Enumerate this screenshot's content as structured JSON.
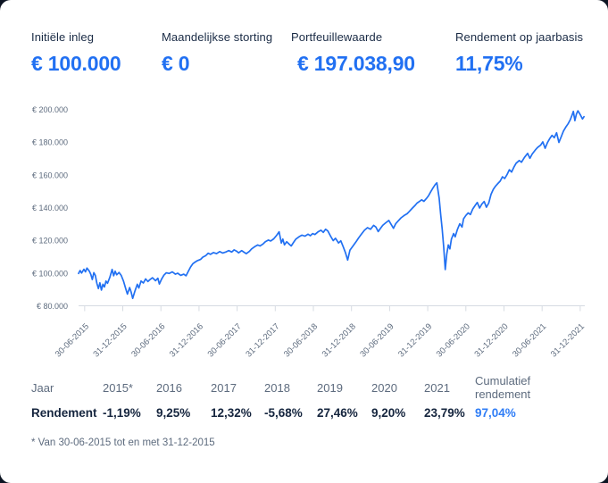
{
  "summary": {
    "items": [
      {
        "label": "Initiële inleg",
        "value": "€ 100.000"
      },
      {
        "label": "Maandelijkse storting",
        "value": "€ 0"
      },
      {
        "label": "Portfeuillewaarde",
        "value": "€ 197.038,90"
      },
      {
        "label": "Rendement op jaarbasis",
        "value": "11,75%"
      }
    ]
  },
  "colors": {
    "accent_blue": "#2170f2",
    "cumulative_blue": "#2f7df6",
    "text_dark": "#15253e",
    "text_gray": "#5d6b7e",
    "axis_line": "#d6dbe2"
  },
  "chart_data": {
    "type": "line",
    "title": "",
    "xlabel": "",
    "ylabel": "",
    "grid": false,
    "legend": "none",
    "ylim": [
      80000,
      200000
    ],
    "y_ticks": [
      {
        "label": "€ 80.000",
        "value": 80000
      },
      {
        "label": "€ 100.000",
        "value": 100000
      },
      {
        "label": "€ 120.000",
        "value": 120000
      },
      {
        "label": "€ 140.000",
        "value": 140000
      },
      {
        "label": "€ 160.000",
        "value": 160000
      },
      {
        "label": "€ 180.000",
        "value": 180000
      },
      {
        "label": "€ 200.000",
        "value": 200000
      }
    ],
    "x_ticks": [
      {
        "label": "30-06-2015",
        "t": 2015.5
      },
      {
        "label": "31-12-2015",
        "t": 2016.0
      },
      {
        "label": "30-06-2016",
        "t": 2016.5
      },
      {
        "label": "31-12-2016",
        "t": 2017.0
      },
      {
        "label": "30-06-2017",
        "t": 2017.5
      },
      {
        "label": "31-12-2017",
        "t": 2018.0
      },
      {
        "label": "30-06-2018",
        "t": 2018.5
      },
      {
        "label": "31-12-2018",
        "t": 2019.0
      },
      {
        "label": "30-06-2019",
        "t": 2019.5
      },
      {
        "label": "31-12-2019",
        "t": 2020.0
      },
      {
        "label": "30-06-2020",
        "t": 2020.5
      },
      {
        "label": "31-12-2020",
        "t": 2021.0
      },
      {
        "label": "30-06-2021",
        "t": 2021.5
      },
      {
        "label": "31-12-2021",
        "t": 2022.0
      }
    ],
    "series": [
      {
        "name": "Portefeuillewaarde",
        "points": [
          [
            2015.42,
            100000
          ],
          [
            2015.44,
            101800
          ],
          [
            2015.46,
            100300
          ],
          [
            2015.49,
            102600
          ],
          [
            2015.51,
            101000
          ],
          [
            2015.53,
            103300
          ],
          [
            2015.56,
            101500
          ],
          [
            2015.58,
            99500
          ],
          [
            2015.6,
            96300
          ],
          [
            2015.62,
            100500
          ],
          [
            2015.64,
            98800
          ],
          [
            2015.66,
            94000
          ],
          [
            2015.68,
            90800
          ],
          [
            2015.7,
            94300
          ],
          [
            2015.72,
            89900
          ],
          [
            2015.74,
            93400
          ],
          [
            2015.76,
            91800
          ],
          [
            2015.78,
            95400
          ],
          [
            2015.8,
            94000
          ],
          [
            2015.83,
            97600
          ],
          [
            2015.86,
            102500
          ],
          [
            2015.88,
            98600
          ],
          [
            2015.9,
            101400
          ],
          [
            2015.92,
            99200
          ],
          [
            2015.95,
            100600
          ],
          [
            2015.98,
            98800
          ],
          [
            2016.01,
            95200
          ],
          [
            2016.04,
            90600
          ],
          [
            2016.06,
            87400
          ],
          [
            2016.09,
            91400
          ],
          [
            2016.11,
            88600
          ],
          [
            2016.13,
            84800
          ],
          [
            2016.16,
            89400
          ],
          [
            2016.19,
            93400
          ],
          [
            2016.21,
            91100
          ],
          [
            2016.24,
            95400
          ],
          [
            2016.27,
            94200
          ],
          [
            2016.3,
            96700
          ],
          [
            2016.33,
            95100
          ],
          [
            2016.36,
            96400
          ],
          [
            2016.39,
            97400
          ],
          [
            2016.43,
            95600
          ],
          [
            2016.46,
            97100
          ],
          [
            2016.48,
            93600
          ],
          [
            2016.51,
            96700
          ],
          [
            2016.54,
            99000
          ],
          [
            2016.57,
            100400
          ],
          [
            2016.61,
            100000
          ],
          [
            2016.65,
            101000
          ],
          [
            2016.69,
            99600
          ],
          [
            2016.72,
            100200
          ],
          [
            2016.76,
            98900
          ],
          [
            2016.8,
            99600
          ],
          [
            2016.83,
            98600
          ],
          [
            2016.86,
            101400
          ],
          [
            2016.89,
            104000
          ],
          [
            2016.92,
            106000
          ],
          [
            2016.95,
            107000
          ],
          [
            2016.98,
            107900
          ],
          [
            2017.02,
            108600
          ],
          [
            2017.05,
            110000
          ],
          [
            2017.09,
            111000
          ],
          [
            2017.12,
            112400
          ],
          [
            2017.15,
            111700
          ],
          [
            2017.19,
            112800
          ],
          [
            2017.23,
            112100
          ],
          [
            2017.27,
            113400
          ],
          [
            2017.31,
            112500
          ],
          [
            2017.35,
            113100
          ],
          [
            2017.39,
            114000
          ],
          [
            2017.43,
            113100
          ],
          [
            2017.46,
            114400
          ],
          [
            2017.49,
            113700
          ],
          [
            2017.52,
            112600
          ],
          [
            2017.56,
            114000
          ],
          [
            2017.59,
            113000
          ],
          [
            2017.62,
            112100
          ],
          [
            2017.66,
            113500
          ],
          [
            2017.69,
            115000
          ],
          [
            2017.73,
            116400
          ],
          [
            2017.77,
            117400
          ],
          [
            2017.8,
            116800
          ],
          [
            2017.84,
            118000
          ],
          [
            2017.87,
            119400
          ],
          [
            2017.91,
            120400
          ],
          [
            2017.94,
            119900
          ],
          [
            2017.98,
            121200
          ],
          [
            2018.02,
            123400
          ],
          [
            2018.05,
            125500
          ],
          [
            2018.08,
            118600
          ],
          [
            2018.1,
            121000
          ],
          [
            2018.12,
            117500
          ],
          [
            2018.15,
            119400
          ],
          [
            2018.18,
            118000
          ],
          [
            2018.21,
            116800
          ],
          [
            2018.24,
            119000
          ],
          [
            2018.27,
            121000
          ],
          [
            2018.31,
            122400
          ],
          [
            2018.35,
            123400
          ],
          [
            2018.39,
            122800
          ],
          [
            2018.43,
            124000
          ],
          [
            2018.46,
            123100
          ],
          [
            2018.49,
            124400
          ],
          [
            2018.52,
            123800
          ],
          [
            2018.56,
            125400
          ],
          [
            2018.6,
            126400
          ],
          [
            2018.63,
            125100
          ],
          [
            2018.66,
            127000
          ],
          [
            2018.69,
            126000
          ],
          [
            2018.73,
            122500
          ],
          [
            2018.76,
            120100
          ],
          [
            2018.79,
            121500
          ],
          [
            2018.83,
            118600
          ],
          [
            2018.86,
            120000
          ],
          [
            2018.89,
            116500
          ],
          [
            2018.92,
            112800
          ],
          [
            2018.95,
            108200
          ],
          [
            2018.98,
            114300
          ],
          [
            2019.02,
            116800
          ],
          [
            2019.06,
            119400
          ],
          [
            2019.09,
            121500
          ],
          [
            2019.13,
            124000
          ],
          [
            2019.17,
            126400
          ],
          [
            2019.21,
            128000
          ],
          [
            2019.25,
            127000
          ],
          [
            2019.29,
            129400
          ],
          [
            2019.32,
            128400
          ],
          [
            2019.35,
            125600
          ],
          [
            2019.38,
            127600
          ],
          [
            2019.41,
            129400
          ],
          [
            2019.45,
            131000
          ],
          [
            2019.49,
            132400
          ],
          [
            2019.52,
            130000
          ],
          [
            2019.55,
            127600
          ],
          [
            2019.58,
            130400
          ],
          [
            2019.61,
            132000
          ],
          [
            2019.65,
            134000
          ],
          [
            2019.69,
            135400
          ],
          [
            2019.73,
            136500
          ],
          [
            2019.76,
            138000
          ],
          [
            2019.8,
            140000
          ],
          [
            2019.83,
            141400
          ],
          [
            2019.86,
            143000
          ],
          [
            2019.89,
            144000
          ],
          [
            2019.92,
            145000
          ],
          [
            2019.95,
            144100
          ],
          [
            2019.98,
            145700
          ],
          [
            2020.01,
            147400
          ],
          [
            2020.04,
            150000
          ],
          [
            2020.07,
            152400
          ],
          [
            2020.1,
            154400
          ],
          [
            2020.12,
            155400
          ],
          [
            2020.15,
            146000
          ],
          [
            2020.17,
            136000
          ],
          [
            2020.19,
            127000
          ],
          [
            2020.21,
            116000
          ],
          [
            2020.23,
            102400
          ],
          [
            2020.25,
            111800
          ],
          [
            2020.27,
            117400
          ],
          [
            2020.29,
            115000
          ],
          [
            2020.31,
            121000
          ],
          [
            2020.34,
            124400
          ],
          [
            2020.36,
            122400
          ],
          [
            2020.39,
            127000
          ],
          [
            2020.42,
            130400
          ],
          [
            2020.45,
            128400
          ],
          [
            2020.47,
            133400
          ],
          [
            2020.5,
            135500
          ],
          [
            2020.53,
            137000
          ],
          [
            2020.56,
            136000
          ],
          [
            2020.59,
            139400
          ],
          [
            2020.62,
            141400
          ],
          [
            2020.65,
            143400
          ],
          [
            2020.68,
            140000
          ],
          [
            2020.71,
            142400
          ],
          [
            2020.74,
            144000
          ],
          [
            2020.77,
            140500
          ],
          [
            2020.8,
            143000
          ],
          [
            2020.83,
            148400
          ],
          [
            2020.86,
            151400
          ],
          [
            2020.89,
            153400
          ],
          [
            2020.92,
            155000
          ],
          [
            2020.95,
            156400
          ],
          [
            2020.98,
            159100
          ],
          [
            2021.01,
            158000
          ],
          [
            2021.04,
            160400
          ],
          [
            2021.07,
            163400
          ],
          [
            2021.1,
            162000
          ],
          [
            2021.13,
            165000
          ],
          [
            2021.16,
            167400
          ],
          [
            2021.2,
            169000
          ],
          [
            2021.23,
            168000
          ],
          [
            2021.27,
            171000
          ],
          [
            2021.31,
            173400
          ],
          [
            2021.34,
            170400
          ],
          [
            2021.37,
            173000
          ],
          [
            2021.41,
            175400
          ],
          [
            2021.44,
            177000
          ],
          [
            2021.48,
            178400
          ],
          [
            2021.51,
            180400
          ],
          [
            2021.54,
            176500
          ],
          [
            2021.57,
            180000
          ],
          [
            2021.6,
            182400
          ],
          [
            2021.63,
            184400
          ],
          [
            2021.66,
            183000
          ],
          [
            2021.69,
            186000
          ],
          [
            2021.72,
            180100
          ],
          [
            2021.75,
            183400
          ],
          [
            2021.78,
            187000
          ],
          [
            2021.81,
            189400
          ],
          [
            2021.84,
            191400
          ],
          [
            2021.87,
            194000
          ],
          [
            2021.89,
            196400
          ],
          [
            2021.91,
            199000
          ],
          [
            2021.93,
            193400
          ],
          [
            2021.95,
            197400
          ],
          [
            2021.97,
            199400
          ],
          [
            2022.0,
            197039
          ],
          [
            2022.03,
            194400
          ],
          [
            2022.05,
            195800
          ]
        ]
      }
    ]
  },
  "table": {
    "year_row_label": "Jaar",
    "return_row_label": "Rendement",
    "cumulative_label": "Cumulatief rendement",
    "cumulative_value": "97,04%",
    "columns": [
      {
        "year": "2015*",
        "return": "-1,19%"
      },
      {
        "year": "2016",
        "return": "9,25%"
      },
      {
        "year": "2017",
        "return": "12,32%"
      },
      {
        "year": "2018",
        "return": "-5,68%"
      },
      {
        "year": "2019",
        "return": "27,46%"
      },
      {
        "year": "2020",
        "return": "9,20%"
      },
      {
        "year": "2021",
        "return": "23,79%"
      }
    ]
  },
  "footnote": "* Van 30-06-2015 tot en met 31-12-2015"
}
